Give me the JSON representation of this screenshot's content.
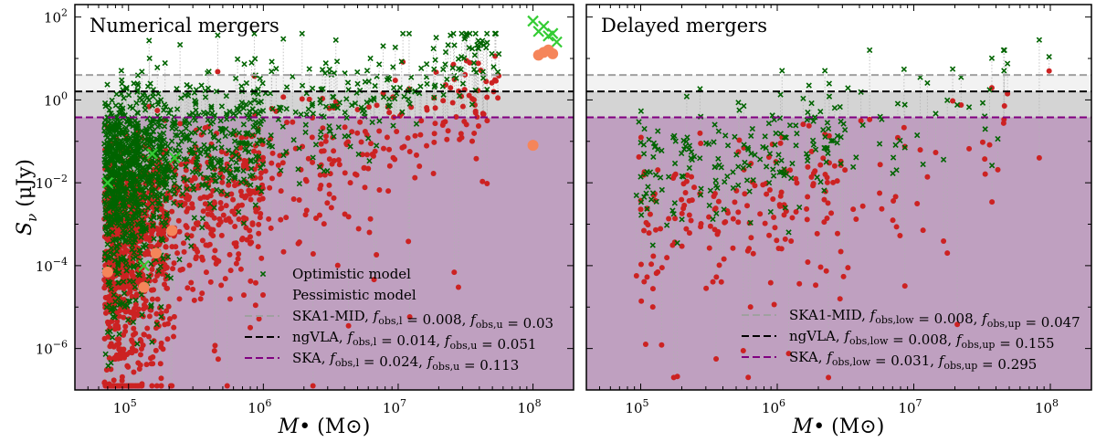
{
  "figure": {
    "ylabel": "S_ν (μJy)",
    "xlabel": "M• (M⊙)"
  },
  "chart_data": [
    {
      "type": "scatter",
      "title": "Numerical mergers",
      "xscale": "log",
      "yscale": "log",
      "xlim": [
        40000,
        200000000
      ],
      "ylim": [
        1e-07,
        200
      ],
      "xticks": [
        {
          "v": 100000,
          "b": "10",
          "e": "5"
        },
        {
          "v": 1000000,
          "b": "10",
          "e": "6"
        },
        {
          "v": 10000000,
          "b": "10",
          "e": "7"
        },
        {
          "v": 100000000,
          "b": "10",
          "e": "8"
        }
      ],
      "yticks": [
        {
          "v": 1e-06,
          "b": "10",
          "e": "−6"
        },
        {
          "v": 0.0001,
          "b": "10",
          "e": "−4"
        },
        {
          "v": 0.01,
          "b": "10",
          "e": "−2"
        },
        {
          "v": 1,
          "b": "10",
          "e": "0"
        },
        {
          "v": 100,
          "b": "10",
          "e": "2"
        }
      ],
      "thresholds": [
        {
          "name": "SKA1-MID",
          "value": 4.0,
          "color": "#a0a0a0",
          "shade": "#f2f2f2"
        },
        {
          "name": "ngVLA",
          "value": 1.6,
          "color": "#000000",
          "shade": "#d4d4d4"
        },
        {
          "name": "SKA",
          "value": 0.38,
          "color": "#800080",
          "shade": "#bfa0c0"
        }
      ],
      "legend": {
        "position": "lower-right",
        "items": [
          {
            "kind": "marker-x",
            "color": "#006400",
            "label": "Optimistic model"
          },
          {
            "kind": "marker-dot",
            "color": "#cc2222",
            "label": "Pessimistic model"
          },
          {
            "kind": "line",
            "color": "#a0a0a0",
            "label": "SKA1-MID, f_obs,l = 0.008, f_obs,u = 0.03"
          },
          {
            "kind": "line",
            "color": "#000000",
            "label": "ngVLA, f_obs,l = 0.014, f_obs,u = 0.051"
          },
          {
            "kind": "line",
            "color": "#800080",
            "label": "SKA, f_obs,l = 0.024, f_obs,u = 0.113"
          }
        ]
      },
      "series": [
        {
          "name": "Optimistic model",
          "marker": "x",
          "color": "#006400",
          "description": "Dense cloud of ~1500 points, mass 6e4–2e8; flux rising roughly with mass from ~1e-5–1 μJy at 1e5 to ~3–30 μJy at 5e7."
        },
        {
          "name": "Pessimistic model",
          "marker": "o",
          "color": "#cc2222",
          "description": "Counterpart of each optimistic point, shifted ~0.5–2 dex lower."
        },
        {
          "name": "Highlighted optimistic",
          "marker": "x-large",
          "color": "#33cc33",
          "points": [
            [
              70000,
              0.01
            ],
            [
              150000,
              0.05
            ],
            [
              220000,
              0.04
            ],
            [
              130000,
              0.0001
            ],
            [
              100000000,
              80
            ],
            [
              110000000,
              45
            ],
            [
              120000000,
              60
            ],
            [
              130000000,
              35
            ],
            [
              140000000,
              40
            ],
            [
              150000000,
              25
            ]
          ]
        },
        {
          "name": "Highlighted pessimistic",
          "marker": "o-large",
          "color": "#f5855a",
          "points": [
            [
              70000,
              7e-05
            ],
            [
              130000,
              3e-05
            ],
            [
              160000,
              0.0002
            ],
            [
              210000,
              0.0007
            ],
            [
              100000000,
              0.08
            ],
            [
              110000000,
              12
            ],
            [
              120000000,
              14
            ],
            [
              130000000,
              16
            ],
            [
              140000000,
              13
            ]
          ]
        }
      ]
    },
    {
      "type": "scatter",
      "title": "Delayed mergers",
      "xscale": "log",
      "yscale": "log",
      "xlim": [
        40000,
        200000000
      ],
      "ylim": [
        1e-07,
        200
      ],
      "xticks": [
        {
          "v": 100000,
          "b": "10",
          "e": "5"
        },
        {
          "v": 1000000,
          "b": "10",
          "e": "6"
        },
        {
          "v": 10000000,
          "b": "10",
          "e": "7"
        },
        {
          "v": 100000000,
          "b": "10",
          "e": "8"
        }
      ],
      "yticks": [
        {
          "v": 1e-06,
          "b": "10",
          "e": "−6"
        },
        {
          "v": 0.0001,
          "b": "10",
          "e": "−4"
        },
        {
          "v": 0.01,
          "b": "10",
          "e": "−2"
        },
        {
          "v": 1,
          "b": "10",
          "e": "0"
        },
        {
          "v": 100,
          "b": "10",
          "e": "2"
        }
      ],
      "thresholds": [
        {
          "name": "SKA1-MID",
          "value": 4.0,
          "color": "#a0a0a0",
          "shade": "#f2f2f2"
        },
        {
          "name": "ngVLA",
          "value": 1.6,
          "color": "#000000",
          "shade": "#d4d4d4"
        },
        {
          "name": "SKA",
          "value": 0.38,
          "color": "#800080",
          "shade": "#bfa0c0"
        }
      ],
      "legend": {
        "position": "lower-right",
        "items": [
          {
            "kind": "line",
            "color": "#a0a0a0",
            "label": "SKA1-MID, f_obs,low = 0.008, f_obs,up = 0.047"
          },
          {
            "kind": "line",
            "color": "#000000",
            "label": "ngVLA, f_obs,low = 0.008, f_obs,up = 0.155"
          },
          {
            "kind": "line",
            "color": "#800080",
            "label": "SKA, f_obs,low = 0.031, f_obs,up = 0.295"
          }
        ]
      },
      "series": [
        {
          "name": "Optimistic model",
          "marker": "x",
          "color": "#006400",
          "description": "~200 points, mass 9e4–1e8, flux ~1e-4–20 μJy."
        },
        {
          "name": "Pessimistic model",
          "marker": "o",
          "color": "#cc2222",
          "description": "Counterparts ~0.5–3 dex lower, down to ~2e-7 μJy."
        }
      ]
    }
  ]
}
